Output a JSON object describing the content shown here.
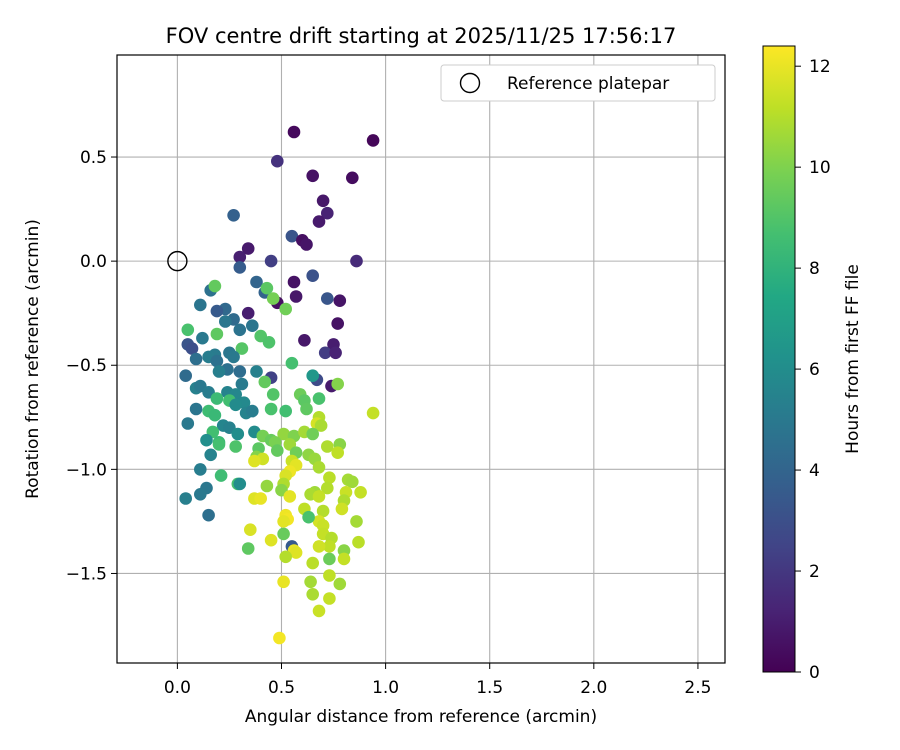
{
  "chart_data": {
    "type": "scatter",
    "title": "FOV centre drift starting at 2025/11/25 17:56:17",
    "xlabel": "Angular distance from reference (arcmin)",
    "ylabel": "Rotation from reference (arcmin)",
    "xlim": [
      -0.29,
      2.63
    ],
    "ylim": [
      -1.93,
      0.99
    ],
    "x_ticks": [
      0.0,
      0.5,
      1.0,
      1.5,
      2.0,
      2.5
    ],
    "x_tick_labels": [
      "0.0",
      "0.5",
      "1.0",
      "1.5",
      "2.0",
      "2.5"
    ],
    "y_ticks": [
      0.5,
      0.0,
      -0.5,
      -1.0,
      -1.5
    ],
    "y_tick_labels": [
      "0.5",
      "0.0",
      "−0.5",
      "−1.0",
      "−1.5"
    ],
    "grid": true,
    "colormap": "viridis",
    "colorbar": {
      "label": "Hours from first FF file",
      "range": [
        0,
        12.4
      ],
      "ticks": [
        0,
        2,
        4,
        6,
        8,
        10,
        12
      ],
      "tick_labels": [
        "0",
        "2",
        "4",
        "6",
        "8",
        "10",
        "12"
      ]
    },
    "legend": {
      "label": "Reference platepar",
      "position": "top-right"
    },
    "reference_point": {
      "x": 0.0,
      "y": 0.0
    },
    "points": [
      [
        0.56,
        0.62,
        0.3
      ],
      [
        0.94,
        0.58,
        0.2
      ],
      [
        0.48,
        0.48,
        1.8
      ],
      [
        0.65,
        0.41,
        0.6
      ],
      [
        0.84,
        0.4,
        0.4
      ],
      [
        0.7,
        0.29,
        0.8
      ],
      [
        0.72,
        0.23,
        1.2
      ],
      [
        0.68,
        0.19,
        0.9
      ],
      [
        0.27,
        0.22,
        3.8
      ],
      [
        0.55,
        0.12,
        3.2
      ],
      [
        0.6,
        0.1,
        0.5
      ],
      [
        0.62,
        0.08,
        0.7
      ],
      [
        0.34,
        0.06,
        0.9
      ],
      [
        0.3,
        0.02,
        1.1
      ],
      [
        0.45,
        0.0,
        2.3
      ],
      [
        0.86,
        0.0,
        1.5
      ],
      [
        0.3,
        -0.03,
        3.6
      ],
      [
        0.65,
        -0.07,
        3.1
      ],
      [
        0.56,
        -0.1,
        0.6
      ],
      [
        0.38,
        -0.1,
        4.0
      ],
      [
        0.16,
        -0.14,
        4.6
      ],
      [
        0.42,
        -0.15,
        3.9
      ],
      [
        0.57,
        -0.17,
        0.8
      ],
      [
        0.72,
        -0.18,
        3.3
      ],
      [
        0.78,
        -0.19,
        0.7
      ],
      [
        0.48,
        -0.2,
        0.5
      ],
      [
        0.11,
        -0.21,
        4.8
      ],
      [
        0.23,
        -0.23,
        4.2
      ],
      [
        0.19,
        -0.24,
        3.5
      ],
      [
        0.34,
        -0.25,
        1.0
      ],
      [
        0.27,
        -0.28,
        4.3
      ],
      [
        0.23,
        -0.29,
        4.9
      ],
      [
        0.46,
        -0.18,
        9.8
      ],
      [
        0.43,
        -0.13,
        9.2
      ],
      [
        0.52,
        -0.23,
        9.7
      ],
      [
        0.18,
        -0.12,
        9.4
      ],
      [
        0.05,
        -0.33,
        8.8
      ],
      [
        0.36,
        -0.31,
        4.8
      ],
      [
        0.3,
        -0.33,
        4.7
      ],
      [
        0.77,
        -0.3,
        0.6
      ],
      [
        0.61,
        -0.38,
        0.8
      ],
      [
        0.12,
        -0.37,
        5.0
      ],
      [
        0.19,
        -0.35,
        9.3
      ],
      [
        0.4,
        -0.36,
        9.0
      ],
      [
        0.05,
        -0.4,
        3.2
      ],
      [
        0.07,
        -0.42,
        3.0
      ],
      [
        0.75,
        -0.4,
        1.0
      ],
      [
        0.71,
        -0.44,
        2.2
      ],
      [
        0.76,
        -0.44,
        1.2
      ],
      [
        0.25,
        -0.44,
        4.9
      ],
      [
        0.18,
        -0.45,
        5.1
      ],
      [
        0.15,
        -0.46,
        5.2
      ],
      [
        0.31,
        -0.42,
        9.1
      ],
      [
        0.44,
        -0.39,
        8.9
      ],
      [
        0.09,
        -0.47,
        4.5
      ],
      [
        0.19,
        -0.48,
        4.6
      ],
      [
        0.27,
        -0.46,
        5.0
      ],
      [
        0.55,
        -0.49,
        8.7
      ],
      [
        0.24,
        -0.52,
        4.6
      ],
      [
        0.3,
        -0.53,
        4.4
      ],
      [
        0.2,
        -0.53,
        5.3
      ],
      [
        0.38,
        -0.53,
        5.4
      ],
      [
        0.45,
        -0.56,
        2.4
      ],
      [
        0.04,
        -0.55,
        4.3
      ],
      [
        0.42,
        -0.58,
        9.4
      ],
      [
        0.67,
        -0.57,
        2.8
      ],
      [
        0.65,
        -0.55,
        6.5
      ],
      [
        0.74,
        -0.6,
        0.9
      ],
      [
        0.77,
        -0.59,
        10.1
      ],
      [
        0.31,
        -0.59,
        5.1
      ],
      [
        0.59,
        -0.64,
        9.6
      ],
      [
        0.61,
        -0.67,
        9.2
      ],
      [
        0.09,
        -0.61,
        5.4
      ],
      [
        0.11,
        -0.6,
        5.0
      ],
      [
        0.15,
        -0.63,
        5.2
      ],
      [
        0.24,
        -0.63,
        5.5
      ],
      [
        0.28,
        -0.64,
        5.7
      ],
      [
        0.46,
        -0.64,
        9.0
      ],
      [
        0.68,
        -0.66,
        8.8
      ],
      [
        0.19,
        -0.66,
        8.4
      ],
      [
        0.25,
        -0.67,
        8.6
      ],
      [
        0.32,
        -0.68,
        5.8
      ],
      [
        0.28,
        -0.69,
        5.9
      ],
      [
        0.09,
        -0.71,
        4.8
      ],
      [
        0.15,
        -0.72,
        8.5
      ],
      [
        0.18,
        -0.74,
        8.3
      ],
      [
        0.33,
        -0.73,
        5.5
      ],
      [
        0.36,
        -0.72,
        5.2
      ],
      [
        0.45,
        -0.71,
        8.8
      ],
      [
        0.52,
        -0.72,
        8.6
      ],
      [
        0.62,
        -0.71,
        9.3
      ],
      [
        0.94,
        -0.73,
        11.3
      ],
      [
        0.05,
        -0.78,
        5.0
      ],
      [
        0.68,
        -0.75,
        11.0
      ],
      [
        0.67,
        -0.78,
        11.6
      ],
      [
        0.69,
        -0.79,
        10.8
      ],
      [
        0.22,
        -0.79,
        5.6
      ],
      [
        0.25,
        -0.8,
        5.4
      ],
      [
        0.17,
        -0.82,
        8.6
      ],
      [
        0.29,
        -0.83,
        6.0
      ],
      [
        0.37,
        -0.82,
        5.9
      ],
      [
        0.41,
        -0.84,
        9.8
      ],
      [
        0.51,
        -0.83,
        10.4
      ],
      [
        0.56,
        -0.84,
        10.0
      ],
      [
        0.61,
        -0.82,
        10.7
      ],
      [
        0.65,
        -0.83,
        9.7
      ],
      [
        0.14,
        -0.86,
        6.1
      ],
      [
        0.2,
        -0.87,
        8.4
      ],
      [
        0.45,
        -0.86,
        9.5
      ],
      [
        0.47,
        -0.87,
        9.9
      ],
      [
        0.54,
        -0.88,
        10.6
      ],
      [
        0.72,
        -0.89,
        10.9
      ],
      [
        0.78,
        -0.88,
        10.2
      ],
      [
        0.2,
        -0.88,
        8.7
      ],
      [
        0.28,
        -0.89,
        8.9
      ],
      [
        0.39,
        -0.9,
        9.2
      ],
      [
        0.48,
        -0.91,
        9.4
      ],
      [
        0.57,
        -0.92,
        9.7
      ],
      [
        0.63,
        -0.93,
        10.3
      ],
      [
        0.77,
        -0.92,
        11.2
      ],
      [
        0.38,
        -0.94,
        10.1
      ],
      [
        0.41,
        -0.95,
        11.5
      ],
      [
        0.16,
        -0.93,
        5.5
      ],
      [
        0.55,
        -0.96,
        11.4
      ],
      [
        0.66,
        -0.95,
        10.5
      ],
      [
        0.37,
        -0.96,
        11.8
      ],
      [
        0.57,
        -0.98,
        11.9
      ],
      [
        0.68,
        -0.99,
        10.8
      ],
      [
        0.11,
        -1.0,
        5.2
      ],
      [
        0.54,
        -1.01,
        12.1
      ],
      [
        0.52,
        -1.03,
        11.7
      ],
      [
        0.21,
        -1.03,
        8.5
      ],
      [
        0.73,
        -1.04,
        11.1
      ],
      [
        0.82,
        -1.05,
        10.7
      ],
      [
        0.29,
        -1.07,
        8.7
      ],
      [
        0.3,
        -1.07,
        6.0
      ],
      [
        0.43,
        -1.08,
        10.4
      ],
      [
        0.51,
        -1.07,
        10.9
      ],
      [
        0.84,
        -1.06,
        10.6
      ],
      [
        0.14,
        -1.09,
        4.9
      ],
      [
        0.5,
        -1.1,
        10.2
      ],
      [
        0.72,
        -1.09,
        11.0
      ],
      [
        0.66,
        -1.11,
        10.6
      ],
      [
        0.81,
        -1.11,
        11.4
      ],
      [
        0.88,
        -1.11,
        11.3
      ],
      [
        0.11,
        -1.12,
        5.0
      ],
      [
        0.64,
        -1.12,
        10.8
      ],
      [
        0.68,
        -1.13,
        11.3
      ],
      [
        0.54,
        -1.13,
        11.9
      ],
      [
        0.37,
        -1.14,
        11.8
      ],
      [
        0.4,
        -1.14,
        12.0
      ],
      [
        0.8,
        -1.15,
        10.9
      ],
      [
        0.04,
        -1.14,
        5.3
      ],
      [
        0.79,
        -1.19,
        11.5
      ],
      [
        0.61,
        -1.19,
        11.2
      ],
      [
        0.7,
        -1.2,
        11.0
      ],
      [
        0.15,
        -1.22,
        4.5
      ],
      [
        0.52,
        -1.22,
        12.1
      ],
      [
        0.53,
        -1.24,
        12.2
      ],
      [
        0.51,
        -1.25,
        11.9
      ],
      [
        0.68,
        -1.25,
        11.6
      ],
      [
        0.86,
        -1.25,
        10.7
      ],
      [
        0.63,
        -1.23,
        8.8
      ],
      [
        0.7,
        -1.27,
        11.4
      ],
      [
        0.35,
        -1.29,
        11.7
      ],
      [
        0.51,
        -1.31,
        9.5
      ],
      [
        0.7,
        -1.31,
        11.3
      ],
      [
        0.87,
        -1.35,
        11.1
      ],
      [
        0.45,
        -1.34,
        11.8
      ],
      [
        0.74,
        -1.33,
        11.0
      ],
      [
        0.55,
        -1.37,
        3.5
      ],
      [
        0.73,
        -1.37,
        11.2
      ],
      [
        0.68,
        -1.37,
        11.5
      ],
      [
        0.34,
        -1.38,
        9.3
      ],
      [
        0.56,
        -1.39,
        12.0
      ],
      [
        0.57,
        -1.4,
        11.8
      ],
      [
        0.8,
        -1.39,
        10.2
      ],
      [
        0.52,
        -1.42,
        11.0
      ],
      [
        0.73,
        -1.43,
        9.6
      ],
      [
        0.8,
        -1.43,
        11.3
      ],
      [
        0.65,
        -1.45,
        11.1
      ],
      [
        0.73,
        -1.51,
        11.2
      ],
      [
        0.64,
        -1.54,
        10.7
      ],
      [
        0.51,
        -1.54,
        12.0
      ],
      [
        0.78,
        -1.55,
        10.6
      ],
      [
        0.65,
        -1.6,
        10.8
      ],
      [
        0.73,
        -1.62,
        11.3
      ],
      [
        0.68,
        -1.68,
        11.4
      ],
      [
        0.49,
        -1.81,
        12.2
      ]
    ]
  }
}
